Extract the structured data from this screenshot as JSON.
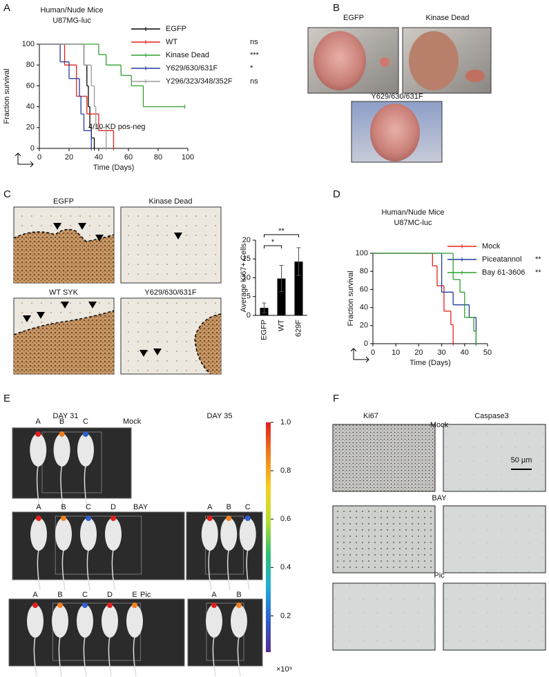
{
  "panels": {
    "labels": [
      "A",
      "B",
      "C",
      "D",
      "E",
      "F"
    ]
  },
  "chart_data": [
    {
      "type": "step",
      "title": "Human/Nude Mice",
      "subtitle": "U87MG-luc",
      "xlabel": "Time (Days)",
      "ylabel": "Fraction survival",
      "xlim": [
        0,
        100
      ],
      "xticks": [
        0,
        20,
        40,
        60,
        80,
        100
      ],
      "ylim": [
        0,
        100
      ],
      "yticks": [
        0,
        20,
        40,
        60,
        80,
        100
      ],
      "annotation": "4/10 KD pos-neg",
      "series": [
        {
          "name": "EGFP",
          "color": "#000000",
          "x": [
            0,
            30,
            32,
            33,
            34,
            35,
            37
          ],
          "values": [
            100,
            80,
            60,
            40,
            20,
            10,
            0
          ]
        },
        {
          "name": "WT",
          "color": "#e3201b",
          "annotation": "ns",
          "x": [
            0,
            17,
            25,
            32,
            40,
            50
          ],
          "values": [
            100,
            80,
            50,
            33,
            17,
            0
          ]
        },
        {
          "name": "Kinase Dead",
          "color": "#2ca02c",
          "annotation": "***",
          "x": [
            0,
            40,
            45,
            55,
            62,
            70,
            98
          ],
          "values": [
            100,
            90,
            80,
            70,
            60,
            40,
            40
          ]
        },
        {
          "name": "Y629/630/631F",
          "color": "#1f3a9e",
          "annotation": "*",
          "x": [
            0,
            14,
            20,
            27,
            28,
            30,
            35
          ],
          "values": [
            100,
            83,
            67,
            50,
            33,
            17,
            0
          ]
        },
        {
          "name": "Y296/323/348/352F",
          "color": "#9a9a9a",
          "annotation": "ns",
          "x": [
            0,
            30,
            35,
            37,
            38,
            45
          ],
          "values": [
            100,
            80,
            60,
            40,
            20,
            0
          ]
        }
      ]
    },
    {
      "type": "bar",
      "ylabel": "Average Ki67+ Cells",
      "categories": [
        "EGFP",
        "WT",
        "629F"
      ],
      "values": [
        2,
        9.8,
        14.3
      ],
      "errors": [
        1.3,
        3.5,
        3.7
      ],
      "color": "#000000",
      "ylim": [
        0,
        20
      ],
      "yticks": [
        0,
        5,
        10,
        15,
        20
      ],
      "annotations": [
        "*",
        "**"
      ]
    },
    {
      "type": "step",
      "title": "Human/Nude Mice",
      "subtitle": "U87MC-luc",
      "xlabel": "Time (Days)",
      "ylabel": "Fraction survival",
      "xlim": [
        0,
        50
      ],
      "xticks": [
        0,
        10,
        20,
        30,
        40,
        50
      ],
      "ylim": [
        0,
        100
      ],
      "yticks": [
        0,
        20,
        40,
        60,
        80,
        100
      ],
      "series": [
        {
          "name": "Mock",
          "color": "#e3201b",
          "x": [
            0,
            26,
            28,
            31,
            34,
            35
          ],
          "values": [
            100,
            86,
            64,
            36,
            21,
            0
          ]
        },
        {
          "name": "Piceatannol",
          "color": "#1f3a9e",
          "annotation": "**",
          "x": [
            0,
            30,
            35,
            42,
            45
          ],
          "values": [
            100,
            57,
            43,
            29,
            0
          ]
        },
        {
          "name": "Bay 61-3606",
          "color": "#2ca02c",
          "annotation": "**",
          "x": [
            0,
            35,
            38,
            40,
            44,
            45
          ],
          "values": [
            100,
            71,
            57,
            29,
            14,
            0
          ]
        }
      ]
    },
    {
      "type": "colorbar",
      "ylim": [
        0.05,
        1
      ],
      "yticks": [
        0.2,
        0.4,
        0.6,
        0.8,
        {
          "value": 1,
          "label": "1.0"
        }
      ],
      "unit": "×10⁹",
      "colors": [
        "#5a2d8c",
        "#2f5fd0",
        "#20b0d8",
        "#30c070",
        "#b8e030",
        "#f5d020",
        "#f08020",
        "#e02020"
      ]
    }
  ],
  "photos_b": {
    "captions": [
      "EGFP",
      "Kinase Dead",
      "Y629/630/631F"
    ]
  },
  "ihc_c": {
    "captions": [
      "EGFP",
      "Kinase Dead",
      "WT SYK",
      "Y629/630/631F"
    ]
  },
  "imaging_e": {
    "days": [
      "DAY 31",
      "DAY 35"
    ],
    "groups": [
      {
        "name": "Mock",
        "day31": [
          "A",
          "B",
          "C"
        ]
      },
      {
        "name": "BAY",
        "day31": [
          "A",
          "B",
          "C",
          "D"
        ],
        "day35": [
          "A",
          "B",
          "C"
        ]
      },
      {
        "name": "Pic",
        "day31": [
          "A",
          "B",
          "C",
          "D",
          "E"
        ],
        "day35": [
          "A",
          "B"
        ]
      }
    ]
  },
  "ihc_f": {
    "stains": [
      "Ki67",
      "Caspase3"
    ],
    "groups": [
      "Mock",
      "BAY",
      "Pic"
    ],
    "scale_bar": "50 µm"
  }
}
